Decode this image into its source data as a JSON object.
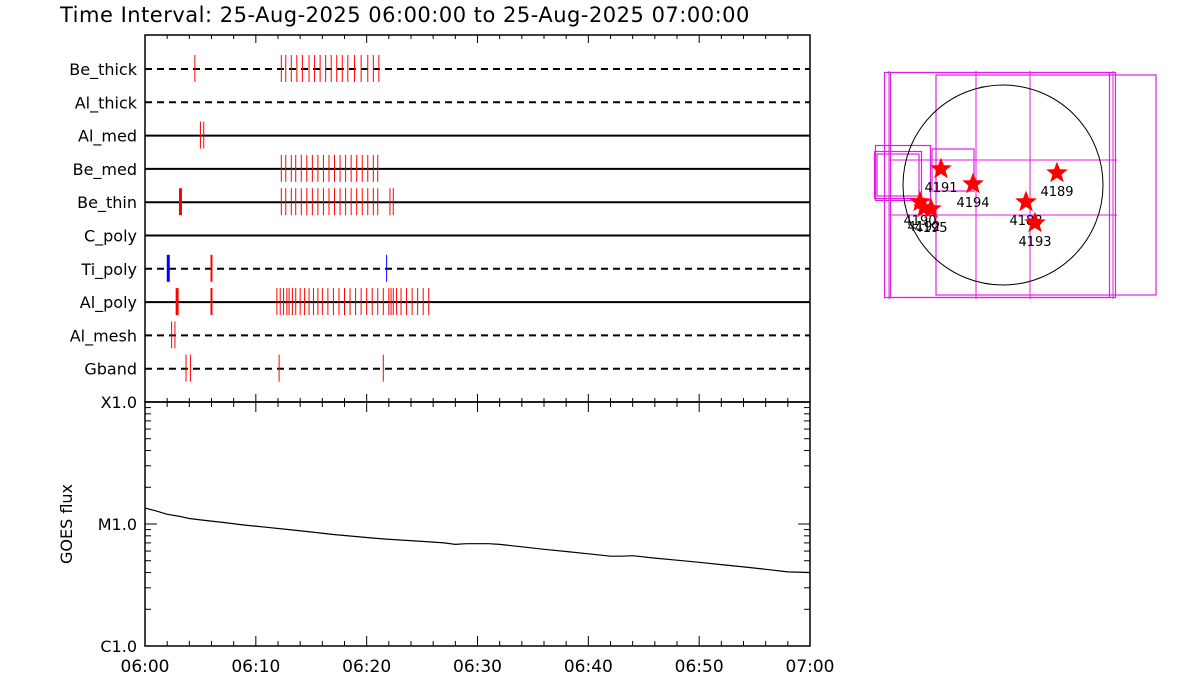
{
  "title": "Time Interval: 25-Aug-2025 06:00:00 to 25-Aug-2025 07:00:00",
  "colors": {
    "red": "#ff0000",
    "blue": "#0000ff",
    "magenta": "#e21ee2",
    "axis": "#000000"
  },
  "chart_data": [
    {
      "type": "timeline",
      "x_range": [
        "06:00",
        "07:00"
      ],
      "x_ticks": [
        "06:00",
        "06:10",
        "06:20",
        "06:30",
        "06:40",
        "06:50",
        "07:00"
      ],
      "rows": [
        {
          "name": "Be_thick",
          "line": "dashed",
          "events": [
            {
              "t": 4.5
            },
            {
              "t": 12.3
            },
            {
              "t": 12.7
            },
            {
              "t": 13.2
            },
            {
              "t": 13.7
            },
            {
              "t": 14.2
            },
            {
              "t": 14.8
            },
            {
              "t": 15.3
            },
            {
              "t": 15.8
            },
            {
              "t": 16.3
            },
            {
              "t": 16.8
            },
            {
              "t": 17.3
            },
            {
              "t": 17.8
            },
            {
              "t": 18.3
            },
            {
              "t": 18.9
            },
            {
              "t": 19.5
            },
            {
              "t": 20.1
            },
            {
              "t": 20.6
            },
            {
              "t": 21.1
            }
          ]
        },
        {
          "name": "Al_thick",
          "line": "dashed",
          "events": []
        },
        {
          "name": "Al_med",
          "line": "solid",
          "events": [
            {
              "t": 5.0
            },
            {
              "t": 5.3
            }
          ]
        },
        {
          "name": "Be_med",
          "line": "solid",
          "events": [
            {
              "t": 12.3
            },
            {
              "t": 12.7
            },
            {
              "t": 13.2
            },
            {
              "t": 13.6
            },
            {
              "t": 14.1
            },
            {
              "t": 14.6
            },
            {
              "t": 15.1
            },
            {
              "t": 15.6
            },
            {
              "t": 16.1
            },
            {
              "t": 16.6
            },
            {
              "t": 17.1
            },
            {
              "t": 17.6
            },
            {
              "t": 18.1
            },
            {
              "t": 18.6
            },
            {
              "t": 19.1
            },
            {
              "t": 19.6
            },
            {
              "t": 20.1
            },
            {
              "t": 20.6
            },
            {
              "t": 21.0
            }
          ]
        },
        {
          "name": "Be_thin",
          "line": "solid",
          "events": [
            {
              "t": 3.2,
              "w": 3
            },
            {
              "t": 12.3
            },
            {
              "t": 12.7
            },
            {
              "t": 13.2
            },
            {
              "t": 13.6
            },
            {
              "t": 14.1
            },
            {
              "t": 14.6
            },
            {
              "t": 15.1
            },
            {
              "t": 15.6
            },
            {
              "t": 16.1
            },
            {
              "t": 16.6
            },
            {
              "t": 17.1
            },
            {
              "t": 17.6
            },
            {
              "t": 18.1
            },
            {
              "t": 18.6
            },
            {
              "t": 19.1
            },
            {
              "t": 19.6
            },
            {
              "t": 20.1
            },
            {
              "t": 20.6
            },
            {
              "t": 21.0
            },
            {
              "t": 22.1
            },
            {
              "t": 22.4
            }
          ]
        },
        {
          "name": "C_poly",
          "line": "solid",
          "events": []
        },
        {
          "name": "Ti_poly",
          "line": "dashed",
          "events": [
            {
              "t": 2.1,
              "w": 3,
              "color": "blue"
            },
            {
              "t": 6.0,
              "w": 2
            },
            {
              "t": 21.8,
              "color": "blue"
            }
          ]
        },
        {
          "name": "Al_poly",
          "line": "solid",
          "events": [
            {
              "t": 2.9,
              "w": 3
            },
            {
              "t": 6.0,
              "w": 2
            },
            {
              "t": 11.9
            },
            {
              "t": 12.2
            },
            {
              "t": 12.5
            },
            {
              "t": 12.8
            },
            {
              "t": 13.0
            },
            {
              "t": 13.3
            },
            {
              "t": 13.6
            },
            {
              "t": 14.0
            },
            {
              "t": 14.4
            },
            {
              "t": 14.8
            },
            {
              "t": 15.2
            },
            {
              "t": 15.6
            },
            {
              "t": 16.0
            },
            {
              "t": 16.5
            },
            {
              "t": 17.0
            },
            {
              "t": 17.5
            },
            {
              "t": 18.0
            },
            {
              "t": 18.5
            },
            {
              "t": 19.0
            },
            {
              "t": 19.5
            },
            {
              "t": 20.0
            },
            {
              "t": 20.5
            },
            {
              "t": 21.0
            },
            {
              "t": 21.5
            },
            {
              "t": 22.0
            },
            {
              "t": 22.2
            },
            {
              "t": 22.4
            },
            {
              "t": 22.7
            },
            {
              "t": 23.1
            },
            {
              "t": 23.6
            },
            {
              "t": 24.1
            },
            {
              "t": 24.6
            },
            {
              "t": 25.1
            },
            {
              "t": 25.6
            }
          ]
        },
        {
          "name": "Al_mesh",
          "line": "dashed",
          "events": [
            {
              "t": 2.4
            },
            {
              "t": 2.7
            }
          ]
        },
        {
          "name": "Gband",
          "line": "dashed",
          "events": [
            {
              "t": 3.7
            },
            {
              "t": 4.1
            },
            {
              "t": 12.1
            },
            {
              "t": 21.5
            }
          ]
        }
      ]
    },
    {
      "type": "line",
      "ylabel": "GOES flux",
      "log_scale": true,
      "yticks": [
        {
          "label": "X1.0",
          "v": 0.0001
        },
        {
          "label": "M1.0",
          "v": 1e-05
        },
        {
          "label": "C1.0",
          "v": 1e-06
        }
      ],
      "x_range": [
        "06:00",
        "07:00"
      ],
      "x_ticks": [
        "06:00",
        "06:10",
        "06:20",
        "06:30",
        "06:40",
        "06:50",
        "07:00"
      ],
      "series": [
        {
          "points": [
            [
              "06:00",
              1.35e-05
            ],
            [
              "06:01",
              1.28e-05
            ],
            [
              "06:02",
              1.2e-05
            ],
            [
              "06:03",
              1.16e-05
            ],
            [
              "06:04",
              1.11e-05
            ],
            [
              "06:05",
              1.08e-05
            ],
            [
              "06:07",
              1.03e-05
            ],
            [
              "06:09",
              9.8e-06
            ],
            [
              "06:11",
              9.4e-06
            ],
            [
              "06:13",
              9e-06
            ],
            [
              "06:15",
              8.6e-06
            ],
            [
              "06:17",
              8.2e-06
            ],
            [
              "06:19",
              7.9e-06
            ],
            [
              "06:21",
              7.6e-06
            ],
            [
              "06:23",
              7.4e-06
            ],
            [
              "06:25",
              7.2e-06
            ],
            [
              "06:27",
              7e-06
            ],
            [
              "06:28",
              6.8e-06
            ],
            [
              "06:29",
              6.9e-06
            ],
            [
              "06:30",
              6.9e-06
            ],
            [
              "06:31",
              6.9e-06
            ],
            [
              "06:32",
              6.8e-06
            ],
            [
              "06:34",
              6.5e-06
            ],
            [
              "06:36",
              6.2e-06
            ],
            [
              "06:38",
              5.95e-06
            ],
            [
              "06:40",
              5.7e-06
            ],
            [
              "06:42",
              5.45e-06
            ],
            [
              "06:43",
              5.45e-06
            ],
            [
              "06:44",
              5.5e-06
            ],
            [
              "06:46",
              5.25e-06
            ],
            [
              "06:48",
              5.05e-06
            ],
            [
              "06:50",
              4.85e-06
            ],
            [
              "06:52",
              4.65e-06
            ],
            [
              "06:54",
              4.45e-06
            ],
            [
              "06:56",
              4.25e-06
            ],
            [
              "06:58",
              4.05e-06
            ],
            [
              "07:00",
              4e-06
            ]
          ]
        }
      ]
    },
    {
      "type": "scatter",
      "regions": [
        {
          "label": "4191",
          "x": -620,
          "y": 160
        },
        {
          "label": "4194",
          "x": -300,
          "y": 10
        },
        {
          "label": "4189",
          "x": 540,
          "y": 120
        },
        {
          "label": "4188",
          "x": 230,
          "y": -170
        },
        {
          "label": "4193",
          "x": 320,
          "y": -380
        },
        {
          "label": "4190",
          "x": -830,
          "y": -170
        },
        {
          "label": "4192",
          "x": -790,
          "y": -230
        },
        {
          "label": "4195",
          "x": -720,
          "y": -240
        }
      ],
      "fov_boxes": [
        {
          "cx": -60,
          "cy": 0,
          "size": 2250
        },
        {
          "cx": 0,
          "cy": 0,
          "size": 2250
        },
        {
          "cx": 430,
          "cy": 0,
          "size": 2200
        },
        {
          "cx": -1000,
          "cy": 120,
          "size": 550
        },
        {
          "cx": -1050,
          "cy": 100,
          "size": 470
        },
        {
          "cx": -1050,
          "cy": 100,
          "size": 420
        },
        {
          "cx": -500,
          "cy": 150,
          "size": 420
        }
      ],
      "grid_lines": {
        "x": [
          -1140,
          -270,
          270,
          1100
        ],
        "y": [
          -1140,
          -500,
          1080,
          1140
        ]
      }
    }
  ]
}
